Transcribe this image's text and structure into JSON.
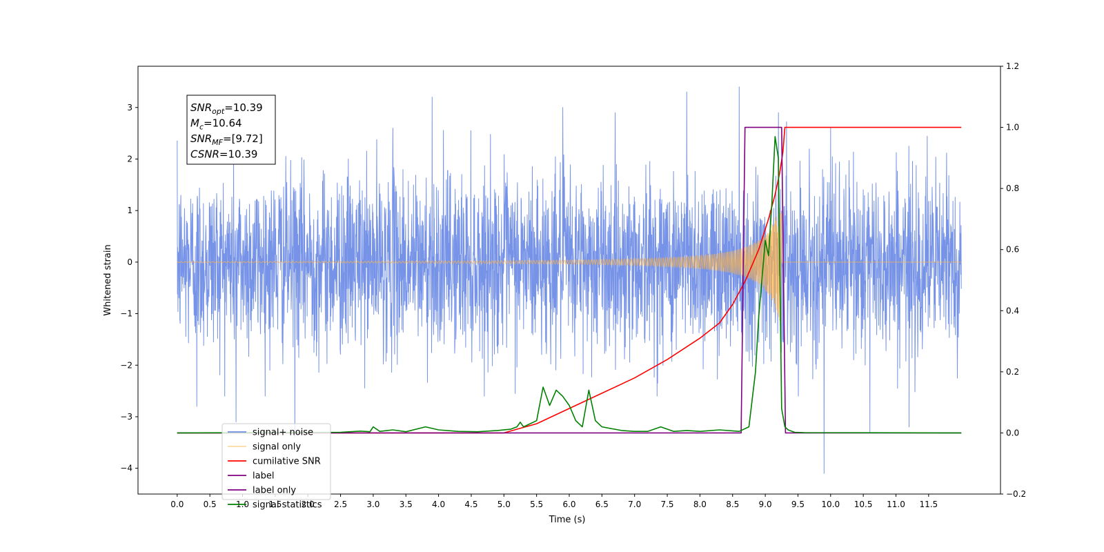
{
  "chart_data": {
    "type": "line",
    "xlabel": "Time (s)",
    "ylabel": "Whitened strain",
    "xlim": [
      -0.6,
      12.6
    ],
    "ylim": [
      -4.5,
      3.8
    ],
    "y2lim": [
      -0.2,
      1.2
    ],
    "x_ticks": [
      0.0,
      0.5,
      1.0,
      1.5,
      2.0,
      2.5,
      3.0,
      3.5,
      4.0,
      4.5,
      5.0,
      5.5,
      6.0,
      6.5,
      7.0,
      7.5,
      8.0,
      8.5,
      9.0,
      9.5,
      10.0,
      10.5,
      11.0,
      11.5
    ],
    "x_tick_labels": [
      "0.0",
      "0.5",
      "1.0",
      "1.5",
      "2.0",
      "2.5",
      "3.0",
      "3.5",
      "4.0",
      "4.5",
      "5.0",
      "5.5",
      "6.0",
      "6.5",
      "7.0",
      "7.5",
      "8.0",
      "8.5",
      "9.0",
      "9.5",
      "10.0",
      "10.5",
      "11.0",
      "11.5"
    ],
    "y_ticks": [
      -4,
      -3,
      -2,
      -1,
      0,
      1,
      2,
      3
    ],
    "y_tick_labels": [
      "−4",
      "−3",
      "−2",
      "−1",
      "0",
      "1",
      "2",
      "3"
    ],
    "y2_ticks": [
      -0.2,
      0.0,
      0.2,
      0.4,
      0.6,
      0.8,
      1.0,
      1.2
    ],
    "y2_tick_labels": [
      "−0.2",
      "0.0",
      "0.2",
      "0.4",
      "0.6",
      "0.8",
      "1.0",
      "1.2"
    ],
    "grid": false,
    "legend_position": "lower-left",
    "annotation": {
      "lines": [
        {
          "label": "SNR",
          "sub": "opt",
          "value": "=10.39"
        },
        {
          "label": "M",
          "sub": "c",
          "value": "=10.64"
        },
        {
          "label": "SNR",
          "sub": "MF",
          "value": "=[9.72]"
        },
        {
          "label": "CSNR",
          "sub": "",
          "value": "=10.39"
        }
      ]
    },
    "noise": {
      "x_range": [
        0.0,
        12.0
      ],
      "typical_amplitude": 1.0,
      "envelope": [
        -2.6,
        2.9
      ],
      "spikes": [
        [
          0.3,
          -2.8
        ],
        [
          0.9,
          -3.1
        ],
        [
          1.8,
          -3.4
        ],
        [
          3.3,
          2.6
        ],
        [
          3.9,
          3.2
        ],
        [
          5.9,
          3.0
        ],
        [
          7.8,
          3.3
        ],
        [
          8.6,
          3.4
        ],
        [
          9.2,
          2.9
        ],
        [
          9.9,
          -4.1
        ],
        [
          10.0,
          2.6
        ],
        [
          10.6,
          -3.3
        ],
        [
          11.2,
          -3.2
        ]
      ]
    },
    "series": [
      {
        "name": "signal+ noise",
        "color": "#6f8de6",
        "axis": "left",
        "style": "noise"
      },
      {
        "name": "signal only",
        "color": "#ffb347",
        "axis": "left",
        "style": "chirp",
        "chirp": {
          "start": 0.0,
          "merger": 9.25,
          "end": 12.0,
          "peak_amplitude": 1.3
        }
      },
      {
        "name": "cumilative SNR",
        "color": "#ff0000",
        "axis": "right",
        "x": [
          0.0,
          5.0,
          5.5,
          6.0,
          6.5,
          7.0,
          7.5,
          8.0,
          8.3,
          8.5,
          8.7,
          8.9,
          9.05,
          9.15,
          9.22,
          9.27,
          9.3,
          12.0
        ],
        "y": [
          0.0,
          0.0,
          0.03,
          0.08,
          0.13,
          0.18,
          0.24,
          0.31,
          0.36,
          0.42,
          0.5,
          0.6,
          0.7,
          0.78,
          0.85,
          0.92,
          1.0,
          1.0
        ]
      },
      {
        "name": "label",
        "color": "#800080",
        "axis": "right",
        "x": [
          0.0,
          8.63,
          8.69,
          9.25,
          9.31,
          12.0
        ],
        "y": [
          0.0,
          0.0,
          1.0,
          1.0,
          0.0,
          0.0
        ]
      },
      {
        "name": "label only",
        "color": "#800080",
        "axis": "right",
        "hidden": true
      },
      {
        "name": "signal statistics",
        "color": "#008000",
        "axis": "right",
        "x": [
          0.0,
          2.5,
          2.8,
          2.95,
          3.0,
          3.1,
          3.3,
          3.5,
          3.8,
          4.0,
          4.3,
          4.6,
          4.9,
          5.1,
          5.2,
          5.25,
          5.3,
          5.5,
          5.6,
          5.7,
          5.8,
          5.9,
          6.0,
          6.1,
          6.2,
          6.3,
          6.4,
          6.5,
          6.8,
          7.0,
          7.2,
          7.4,
          7.6,
          7.8,
          8.0,
          8.3,
          8.6,
          8.75,
          8.85,
          8.9,
          9.0,
          9.05,
          9.1,
          9.15,
          9.2,
          9.25,
          9.3,
          9.35,
          9.45,
          9.6,
          12.0
        ],
        "y": [
          0.0,
          0.002,
          0.006,
          0.004,
          0.02,
          0.005,
          0.01,
          0.004,
          0.02,
          0.01,
          0.005,
          0.004,
          0.008,
          0.012,
          0.02,
          0.035,
          0.02,
          0.04,
          0.15,
          0.09,
          0.14,
          0.12,
          0.09,
          0.04,
          0.02,
          0.14,
          0.04,
          0.02,
          0.008,
          0.005,
          0.005,
          0.02,
          0.005,
          0.008,
          0.005,
          0.01,
          0.005,
          0.02,
          0.2,
          0.38,
          0.63,
          0.58,
          0.75,
          0.97,
          0.9,
          0.08,
          0.02,
          0.01,
          0.002,
          0.001,
          0.0
        ]
      }
    ]
  }
}
